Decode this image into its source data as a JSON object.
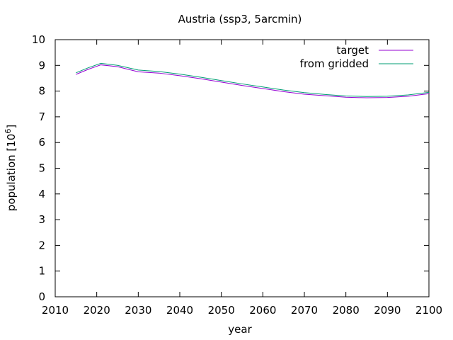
{
  "chart_data": {
    "type": "line",
    "title": "Austria (ssp3, 5arcmin)",
    "xlabel": "year",
    "ylabel_main": "population [10",
    "ylabel_sup": "6",
    "ylabel_close": "]",
    "xlim": [
      2010,
      2100
    ],
    "ylim": [
      0,
      10
    ],
    "xticks": [
      2010,
      2020,
      2030,
      2040,
      2050,
      2060,
      2070,
      2080,
      2090,
      2100
    ],
    "yticks": [
      0,
      1,
      2,
      3,
      4,
      5,
      6,
      7,
      8,
      9,
      10
    ],
    "grid": false,
    "legend_position": "top-right",
    "series": [
      {
        "name": "target",
        "color": "#9400d3",
        "x": [
          2015,
          2018,
          2021,
          2025,
          2030,
          2035,
          2040,
          2045,
          2050,
          2055,
          2060,
          2065,
          2070,
          2075,
          2080,
          2085,
          2090,
          2095,
          2100
        ],
        "y": [
          8.65,
          8.85,
          9.02,
          8.95,
          8.75,
          8.7,
          8.6,
          8.48,
          8.35,
          8.22,
          8.1,
          7.98,
          7.88,
          7.82,
          7.76,
          7.74,
          7.75,
          7.8,
          7.9
        ]
      },
      {
        "name": "from gridded",
        "color": "#009e73",
        "x": [
          2015,
          2018,
          2021,
          2025,
          2030,
          2035,
          2040,
          2045,
          2050,
          2055,
          2060,
          2065,
          2070,
          2075,
          2080,
          2085,
          2090,
          2095,
          2100
        ],
        "y": [
          8.71,
          8.91,
          9.08,
          9.0,
          8.82,
          8.76,
          8.66,
          8.54,
          8.41,
          8.28,
          8.16,
          8.04,
          7.94,
          7.87,
          7.81,
          7.79,
          7.8,
          7.85,
          7.95
        ]
      }
    ]
  }
}
